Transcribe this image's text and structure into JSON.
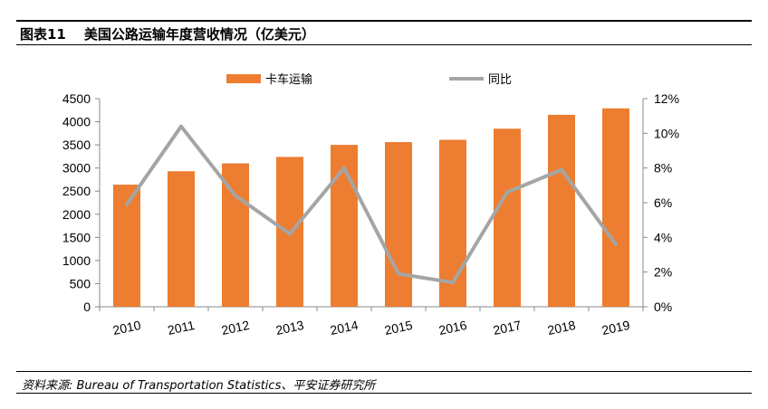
{
  "figure": {
    "number": "图表11",
    "title": "美国公路运输年度营收情况（亿美元）",
    "source": "资料来源: Bureau of Transportation Statistics、平安证券研究所"
  },
  "colors": {
    "bar": "#ED7D31",
    "line": "#A5A5A5"
  },
  "chart_data": {
    "type": "bar",
    "categories": [
      "2010",
      "2011",
      "2012",
      "2013",
      "2014",
      "2015",
      "2016",
      "2017",
      "2018",
      "2019"
    ],
    "series": [
      {
        "name": "卡车运输",
        "type": "bar",
        "axis": "left",
        "values": [
          2640,
          2930,
          3100,
          3240,
          3500,
          3560,
          3610,
          3850,
          4150,
          4290
        ]
      },
      {
        "name": "同比",
        "type": "line",
        "axis": "right",
        "values": [
          5.9,
          10.4,
          6.4,
          4.2,
          8.0,
          1.9,
          1.4,
          6.6,
          7.9,
          3.6
        ]
      }
    ],
    "ylim": [
      0,
      4500
    ],
    "y2lim": [
      0,
      12
    ],
    "yticks": [
      "0",
      "500",
      "1000",
      "1500",
      "2000",
      "2500",
      "3000",
      "3500",
      "4000",
      "4500"
    ],
    "y2ticks": [
      "0%",
      "2%",
      "4%",
      "6%",
      "8%",
      "10%",
      "12%"
    ],
    "legend_position": "top",
    "grid": false
  }
}
